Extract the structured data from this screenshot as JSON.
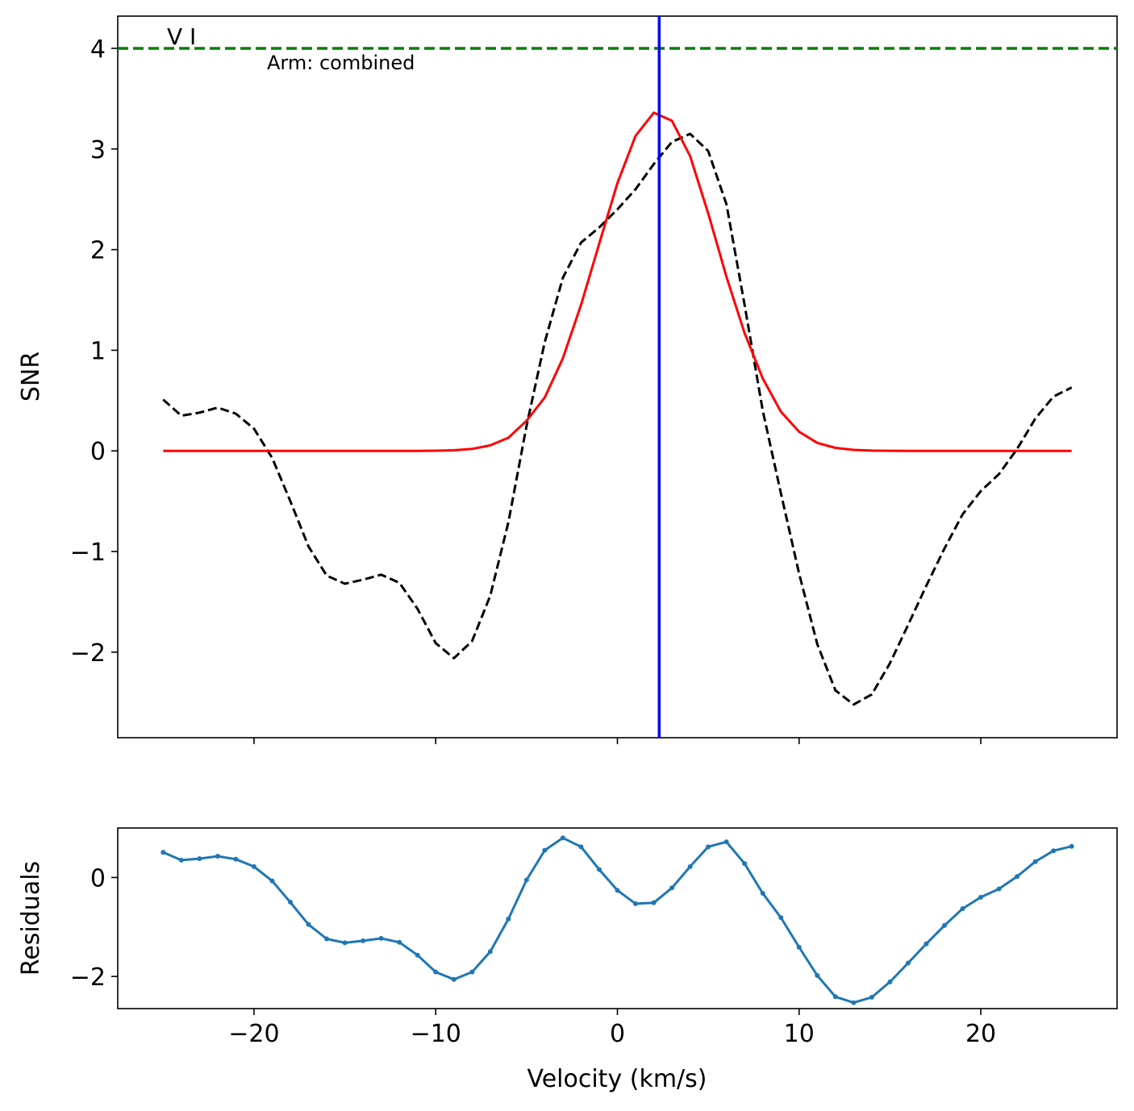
{
  "chart_data": [
    {
      "type": "line",
      "ylabel": "SNR",
      "xlabel": "",
      "xlim": [
        -27.5,
        27.5
      ],
      "ylim": [
        -2.85,
        4.32
      ],
      "xticks": [
        -20,
        -10,
        0,
        10,
        20
      ],
      "yticks": [
        -2,
        -1,
        0,
        1,
        2,
        3,
        4
      ],
      "ytick_labels": [
        "−2",
        "−1",
        "0",
        "1",
        "2",
        "3",
        "4"
      ],
      "annotations": {
        "species": "V I",
        "arm": "Arm: combined"
      },
      "threshold": {
        "y": 4,
        "color": "#008000",
        "style": "dashed"
      },
      "vline": {
        "x": 2.3,
        "color": "#0000ff"
      },
      "x": [
        -25,
        -24,
        -23,
        -22,
        -21,
        -20,
        -19,
        -18,
        -17,
        -16,
        -15,
        -14,
        -13,
        -12,
        -11,
        -10,
        -9,
        -8,
        -7,
        -6,
        -5,
        -4,
        -3,
        -2,
        -1,
        0,
        1,
        2,
        3,
        4,
        5,
        6,
        7,
        8,
        9,
        10,
        11,
        12,
        13,
        14,
        15,
        16,
        17,
        18,
        19,
        20,
        21,
        22,
        23,
        24,
        25
      ],
      "series": [
        {
          "color": "#000000",
          "style": "dashed",
          "values": [
            0.51,
            0.35,
            0.38,
            0.43,
            0.37,
            0.22,
            -0.07,
            -0.5,
            -0.95,
            -1.24,
            -1.32,
            -1.28,
            -1.23,
            -1.31,
            -1.57,
            -1.91,
            -2.06,
            -1.89,
            -1.44,
            -0.71,
            0.25,
            1.08,
            1.72,
            2.07,
            2.22,
            2.4,
            2.6,
            2.85,
            3.07,
            3.15,
            2.98,
            2.45,
            1.45,
            0.4,
            -0.42,
            -1.22,
            -1.92,
            -2.38,
            -2.52,
            -2.42,
            -2.11,
            -1.73,
            -1.34,
            -0.97,
            -0.63,
            -0.4,
            -0.23,
            0.02,
            0.32,
            0.54,
            0.63
          ]
        },
        {
          "color": "#ff0000",
          "style": "solid",
          "values": [
            0,
            0,
            0,
            0,
            0,
            0,
            0,
            0,
            0,
            0,
            0,
            0,
            0,
            0,
            0,
            0.002,
            0.006,
            0.02,
            0.055,
            0.13,
            0.3,
            0.53,
            0.92,
            1.45,
            2.06,
            2.66,
            3.13,
            3.36,
            3.28,
            2.93,
            2.36,
            1.73,
            1.17,
            0.72,
            0.39,
            0.19,
            0.08,
            0.03,
            0.01,
            0.003,
            0.001,
            0,
            0,
            0,
            0,
            0,
            0,
            0,
            0,
            0,
            0
          ]
        }
      ]
    },
    {
      "type": "line",
      "ylabel": "Residuals",
      "xlabel": "Velocity (km/s)",
      "xlim": [
        -27.5,
        27.5
      ],
      "ylim": [
        -2.65,
        1.0
      ],
      "xticks": [
        -20,
        -10,
        0,
        10,
        20
      ],
      "xtick_labels": [
        "−20",
        "−10",
        "0",
        "10",
        "20"
      ],
      "yticks": [
        -2,
        0
      ],
      "ytick_labels": [
        "−2",
        "0"
      ],
      "x": [
        -25,
        -24,
        -23,
        -22,
        -21,
        -20,
        -19,
        -18,
        -17,
        -16,
        -15,
        -14,
        -13,
        -12,
        -11,
        -10,
        -9,
        -8,
        -7,
        -6,
        -5,
        -4,
        -3,
        -2,
        -1,
        0,
        1,
        2,
        3,
        4,
        5,
        6,
        7,
        8,
        9,
        10,
        11,
        12,
        13,
        14,
        15,
        16,
        17,
        18,
        19,
        20,
        21,
        22,
        23,
        24,
        25
      ],
      "series": [
        {
          "color": "#1f77b4",
          "style": "solid-markers",
          "values": [
            0.51,
            0.35,
            0.38,
            0.43,
            0.37,
            0.22,
            -0.07,
            -0.5,
            -0.95,
            -1.24,
            -1.32,
            -1.28,
            -1.23,
            -1.31,
            -1.57,
            -1.91,
            -2.06,
            -1.91,
            -1.5,
            -0.84,
            -0.05,
            0.55,
            0.8,
            0.62,
            0.16,
            -0.26,
            -0.53,
            -0.51,
            -0.21,
            0.22,
            0.62,
            0.72,
            0.28,
            -0.32,
            -0.81,
            -1.41,
            -1.98,
            -2.41,
            -2.53,
            -2.42,
            -2.11,
            -1.73,
            -1.34,
            -0.97,
            -0.63,
            -0.4,
            -0.23,
            0.02,
            0.32,
            0.54,
            0.63
          ]
        }
      ]
    }
  ]
}
